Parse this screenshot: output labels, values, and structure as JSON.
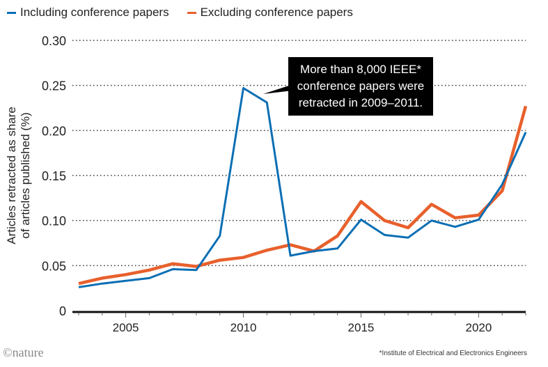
{
  "chart_data": {
    "type": "line",
    "ylabel": "Articles retracted as share of articles published (%)",
    "ylabel_lines": [
      "Articles retracted as share",
      "of articles published (%)"
    ],
    "xlim": [
      2003,
      2022
    ],
    "ylim": [
      0,
      0.3
    ],
    "yticks": [
      0,
      0.05,
      0.1,
      0.15,
      0.2,
      0.25,
      0.3
    ],
    "ytick_labels": [
      "0",
      "0.05",
      "0.10",
      "0.15",
      "0.20",
      "0.25",
      "0.30"
    ],
    "xticks": [
      2005,
      2010,
      2015,
      2020
    ],
    "xtick_labels": [
      "2005",
      "2010",
      "2015",
      "2020"
    ],
    "grid": "horizontal dotted",
    "legend_placement": "top-left",
    "x": [
      2003,
      2004,
      2005,
      2006,
      2007,
      2008,
      2009,
      2010,
      2011,
      2012,
      2013,
      2014,
      2015,
      2016,
      2017,
      2018,
      2019,
      2020,
      2021,
      2022
    ],
    "series": [
      {
        "name": "Including conference papers",
        "color": "#0a6eb4",
        "values": [
          0.026,
          0.03,
          0.033,
          0.036,
          0.046,
          0.045,
          0.083,
          0.247,
          0.231,
          0.061,
          0.066,
          0.069,
          0.101,
          0.084,
          0.081,
          0.1,
          0.093,
          0.101,
          0.14,
          0.198
        ]
      },
      {
        "name": "Excluding conference papers",
        "color": "#e8602c",
        "values": [
          0.03,
          0.036,
          0.04,
          0.045,
          0.052,
          0.049,
          0.056,
          0.059,
          0.067,
          0.073,
          0.066,
          0.083,
          0.121,
          0.1,
          0.092,
          0.118,
          0.103,
          0.106,
          0.133,
          0.227
        ]
      }
    ],
    "annotation": "More than 8,000 IEEE* conference papers were retracted in 2009–2011.",
    "footnote": "*Institute of Electrical and Electronics Engineers"
  },
  "logo": "©nature"
}
